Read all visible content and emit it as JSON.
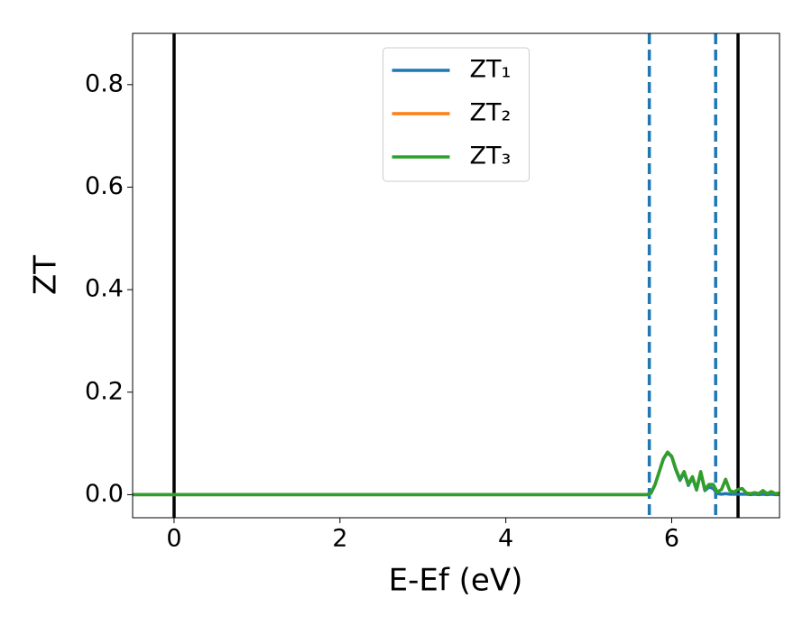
{
  "chart_data": {
    "type": "line",
    "xlabel": "E-Ef (eV)",
    "ylabel": "ZT",
    "x": [
      -0.5,
      0,
      1,
      2,
      3,
      4,
      5,
      5.7,
      5.75,
      5.8,
      5.85,
      5.9,
      5.95,
      6.0,
      6.05,
      6.1,
      6.15,
      6.2,
      6.25,
      6.3,
      6.35,
      6.4,
      6.45,
      6.5,
      6.55,
      6.6,
      6.65,
      6.7,
      6.75,
      6.8,
      6.85,
      6.9,
      6.95,
      7.0,
      7.05,
      7.1,
      7.15,
      7.2,
      7.25,
      7.3
    ],
    "series": [
      {
        "name": "ZT₁",
        "color": "#1f77b4",
        "values": [
          0,
          0,
          0,
          0,
          0,
          0,
          0,
          0,
          0.003,
          0.02,
          0.045,
          0.07,
          0.082,
          0.074,
          0.048,
          0.028,
          0.043,
          0.018,
          0.033,
          0.009,
          0.043,
          0.008,
          0.015,
          0.012,
          0.002,
          0.001,
          0.002,
          0.001,
          0.001,
          0.001,
          0.001,
          0.001,
          0,
          0.001,
          0,
          0.001,
          0,
          0.001,
          0,
          0
        ]
      },
      {
        "name": "ZT₂",
        "color": "#ff7f0e",
        "values": [
          0,
          0,
          0,
          0,
          0,
          0,
          0,
          0,
          0.003,
          0.02,
          0.045,
          0.07,
          0.083,
          0.075,
          0.05,
          0.03,
          0.045,
          0.02,
          0.035,
          0.01,
          0.045,
          0.01,
          0.02,
          0.02,
          0.005,
          0.01,
          0.03,
          0.008,
          0.005,
          0.01,
          0.012,
          0.003,
          0.002,
          0.004,
          0.002,
          0.008,
          0.002,
          0.006,
          0.002,
          0.003
        ]
      },
      {
        "name": "ZT₃",
        "color": "#2ca02c",
        "values": [
          0,
          0,
          0,
          0,
          0,
          0,
          0,
          0,
          0.003,
          0.02,
          0.045,
          0.07,
          0.083,
          0.075,
          0.05,
          0.03,
          0.045,
          0.02,
          0.035,
          0.01,
          0.045,
          0.01,
          0.02,
          0.02,
          0.005,
          0.01,
          0.03,
          0.008,
          0.005,
          0.01,
          0.012,
          0.003,
          0.002,
          0.004,
          0.002,
          0.008,
          0.002,
          0.006,
          0.002,
          0.003
        ]
      }
    ],
    "vlines": [
      {
        "x": 0,
        "color": "#000000",
        "dashed": false
      },
      {
        "x": 6.8,
        "color": "#000000",
        "dashed": false
      },
      {
        "x": 5.73,
        "color": "#1f77b4",
        "dashed": true
      },
      {
        "x": 6.53,
        "color": "#1f77b4",
        "dashed": true
      }
    ],
    "xlim": [
      -0.5,
      7.3
    ],
    "xticks": [
      0,
      2,
      4,
      6
    ],
    "ylim": [
      -0.045,
      0.9
    ],
    "yticks": [
      {
        "value": 0,
        "label": "0.0"
      },
      0.2,
      0.4,
      0.6,
      0.8
    ],
    "legend": "upper center",
    "grid": false
  }
}
